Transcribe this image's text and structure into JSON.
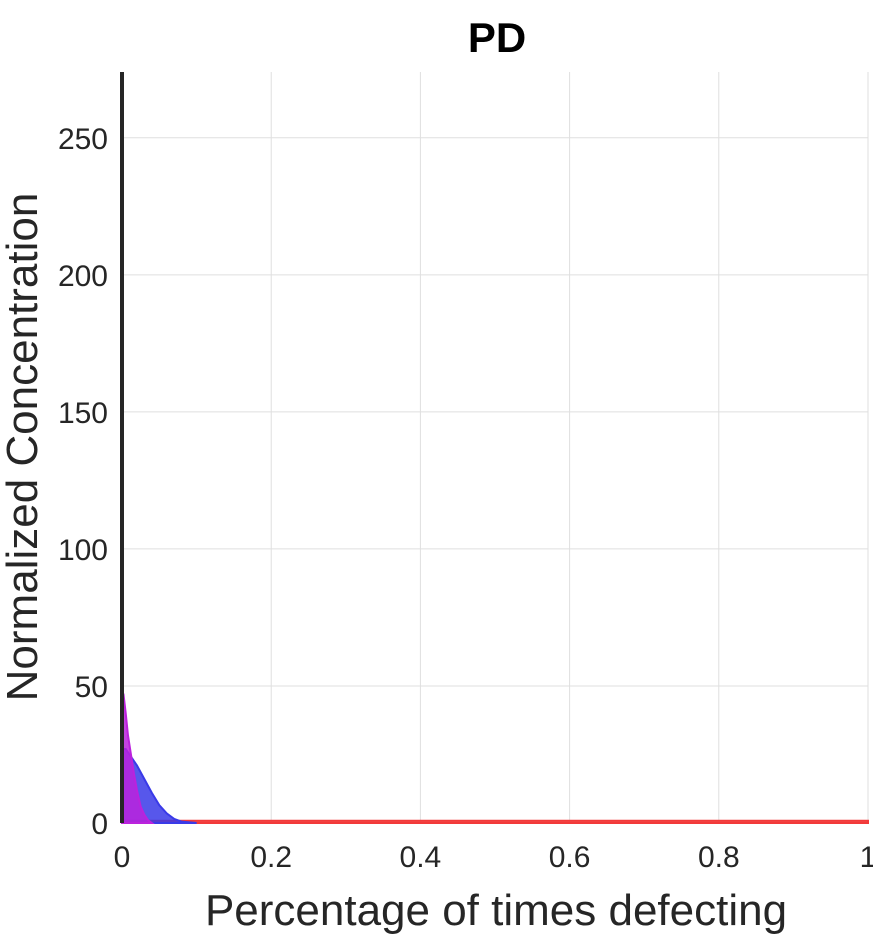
{
  "chart_data": {
    "type": "area",
    "title": "PD",
    "xlabel": "Percentage of times defecting",
    "ylabel": "Normalized Concentration",
    "xlim": [
      0,
      1
    ],
    "ylim": [
      0,
      274
    ],
    "grid": true,
    "x_ticks": [
      {
        "value": 0,
        "label": "0"
      },
      {
        "value": 0.2,
        "label": "0.2"
      },
      {
        "value": 0.4,
        "label": "0.4"
      },
      {
        "value": 0.6,
        "label": "0.6"
      },
      {
        "value": 0.8,
        "label": "0.8"
      },
      {
        "value": 1,
        "label": "1"
      }
    ],
    "y_ticks": [
      {
        "value": 0,
        "label": "0"
      },
      {
        "value": 50,
        "label": "50"
      },
      {
        "value": 100,
        "label": "100"
      },
      {
        "value": 150,
        "label": "150"
      },
      {
        "value": 200,
        "label": "200"
      },
      {
        "value": 250,
        "label": "250"
      }
    ],
    "series": [
      {
        "color": "#f23a3a",
        "x": [
          0,
          0.1,
          0.2,
          0.4,
          0.6,
          0.8,
          1.0
        ],
        "y": [
          0.8,
          0.8,
          0.8,
          0.8,
          0.8,
          0.8,
          0.8
        ]
      },
      {
        "color": "#3a3ae8",
        "x": [
          0,
          0.005,
          0.01,
          0.02,
          0.03,
          0.04,
          0.05,
          0.06,
          0.07,
          0.08,
          0.1
        ],
        "y": [
          27,
          27,
          25,
          21,
          16,
          11,
          6.5,
          3.5,
          1.5,
          0.5,
          0
        ]
      },
      {
        "color": "#bb22dd",
        "x": [
          0,
          0.002,
          0.005,
          0.008,
          0.012,
          0.016,
          0.02,
          0.025,
          0.03,
          0.035,
          0.04
        ],
        "y": [
          48,
          47,
          40,
          32,
          25,
          18,
          12,
          6,
          3,
          1,
          0
        ]
      }
    ]
  }
}
